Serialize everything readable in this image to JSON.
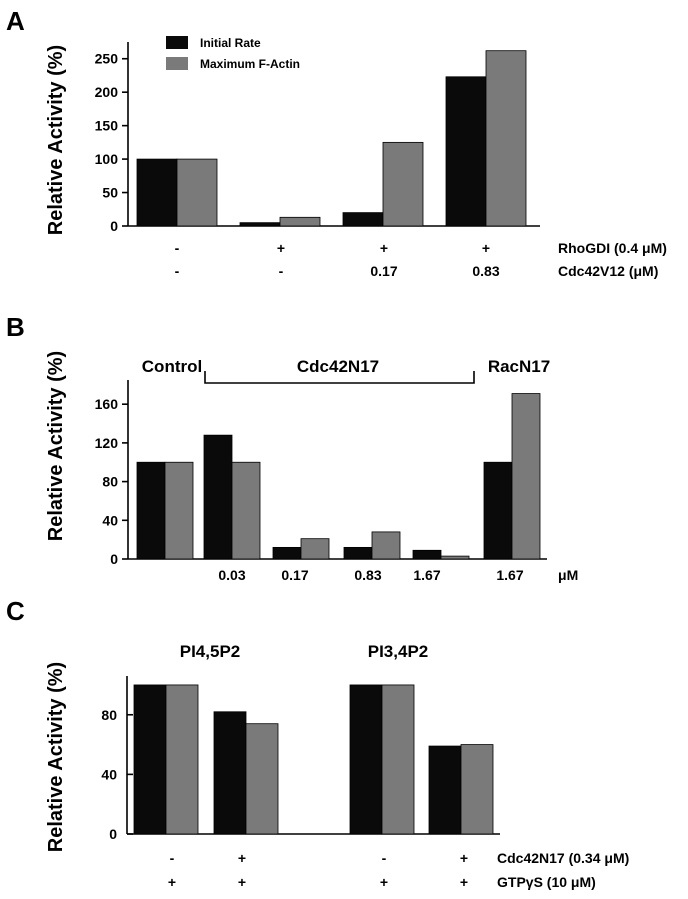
{
  "colors": {
    "initial": "#0a0a0a",
    "max": "#7a7a7a",
    "axis": "#000000"
  },
  "chart_data": [
    {
      "panel": "A",
      "type": "bar",
      "ylabel": "Relative Activity (%)",
      "ylim": [
        0,
        275
      ],
      "yticks": [
        0,
        50,
        100,
        150,
        200,
        250
      ],
      "legend": [
        "Initial Rate",
        "Maximum F-Actin"
      ],
      "legend_position": "top-left",
      "series": [
        {
          "name": "Initial Rate",
          "values": [
            100,
            5,
            20,
            223
          ]
        },
        {
          "name": "Maximum F-Actin",
          "values": [
            100,
            13,
            125,
            262
          ]
        }
      ],
      "row_labels": [
        {
          "label": "RhoGDI (0.4 μM)",
          "values": [
            "-",
            "+",
            "+",
            "+"
          ]
        },
        {
          "label": "Cdc42V12 (μM)",
          "values": [
            "-",
            "-",
            "0.17",
            "0.83"
          ]
        }
      ]
    },
    {
      "panel": "B",
      "type": "bar",
      "ylabel": "Relative Activity (%)",
      "ylim": [
        0,
        185
      ],
      "yticks": [
        0,
        40,
        80,
        120,
        160
      ],
      "group_labels": [
        "Control",
        "Cdc42N17",
        "RacN17"
      ],
      "categories": [
        "",
        "0.03",
        "0.17",
        "0.83",
        "1.67",
        "1.67"
      ],
      "unit_label": "μM",
      "series": [
        {
          "name": "Initial Rate",
          "values": [
            100,
            128,
            12,
            12,
            9,
            100
          ]
        },
        {
          "name": "Maximum F-Actin",
          "values": [
            100,
            100,
            21,
            28,
            3,
            171
          ]
        }
      ]
    },
    {
      "panel": "C",
      "type": "bar",
      "ylabel": "Relative Activity (%)",
      "ylim": [
        0,
        106
      ],
      "yticks": [
        0,
        40,
        80
      ],
      "group_labels": [
        "PI4,5P2",
        "PI3,4P2"
      ],
      "series": [
        {
          "name": "Initial Rate",
          "values": [
            100,
            82,
            100,
            59
          ]
        },
        {
          "name": "Maximum F-Actin",
          "values": [
            100,
            74,
            100,
            60
          ]
        }
      ],
      "row_labels": [
        {
          "label": "Cdc42N17 (0.34 μM)",
          "values": [
            "-",
            "+",
            "-",
            "+"
          ]
        },
        {
          "label": "GTPγS (10 μM)",
          "values": [
            "+",
            "+",
            "+",
            "+"
          ]
        }
      ]
    }
  ]
}
